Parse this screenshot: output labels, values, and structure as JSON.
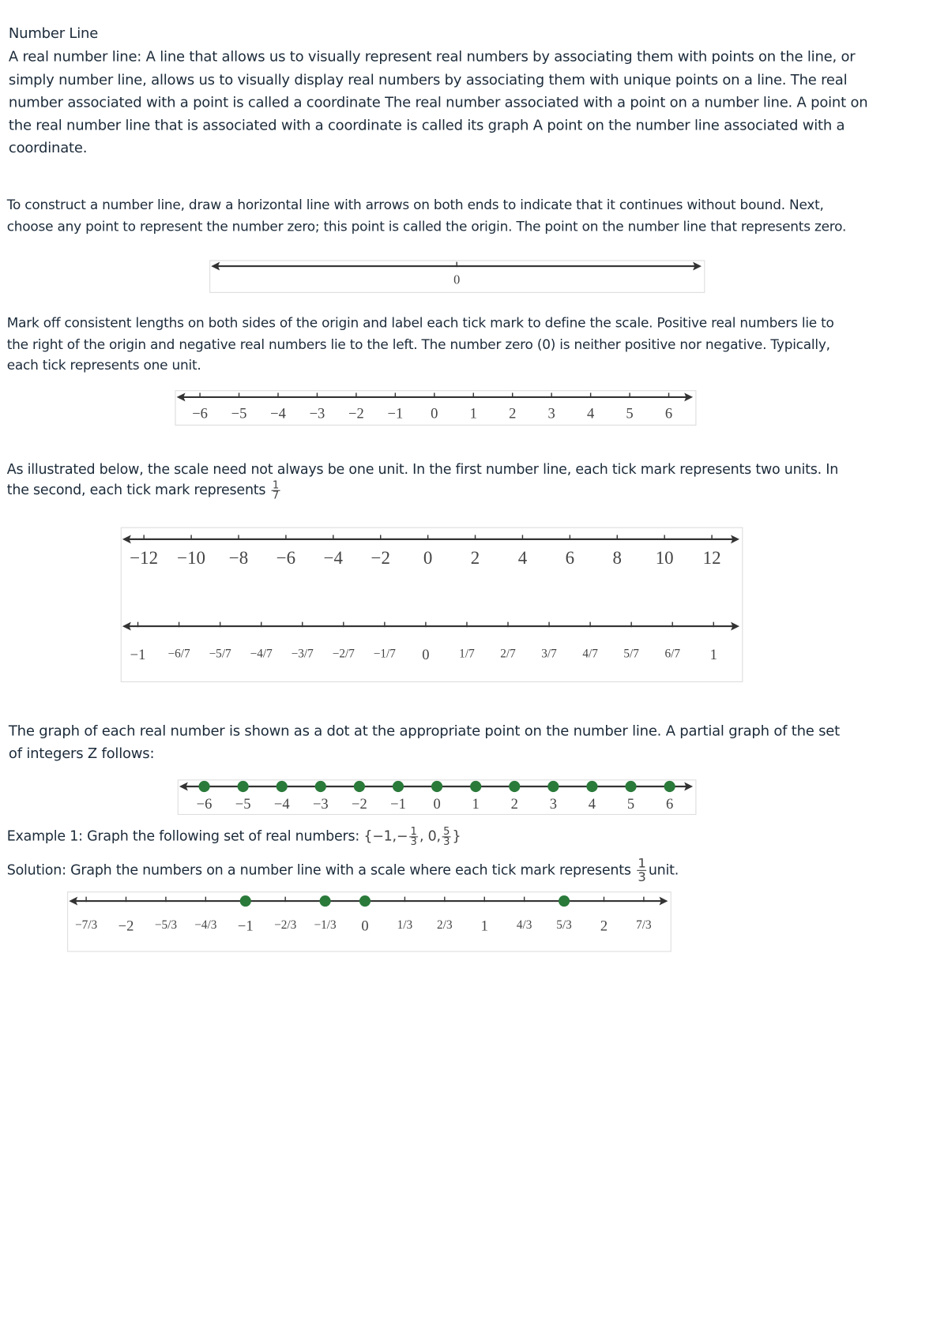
{
  "title": "Number Line",
  "intro": [
    "A real number line: A line that allows us to visually represent real numbers by associating them with points on the line, or",
    "simply number line, allows us to visually display real numbers by associating them with unique points on a line. The real",
    "number associated with a point is called a coordinate The real number associated with a point on a number line. A point on",
    "the real number line that is associated with a coordinate is called its graph A point on the number line associated with a",
    "coordinate."
  ],
  "construct": [
    "To construct a number line, draw a horizontal line with arrows on both ends to indicate that it continues without bound. Next,",
    "choose any point to represent the number zero; this point is called the origin. The point on the number line that represents zero."
  ],
  "markoff": [
    "Mark off consistent lengths on both sides of the origin and label each tick mark to define the scale. Positive real numbers lie to",
    "the right of the origin and negative real numbers lie to the left. The number zero (0) is neither positive nor negative. Typically,",
    "each tick represents one unit."
  ],
  "scale": {
    "line1": "As illustrated below, the scale need not always be one unit. In the first number line, each tick mark represents two units. In",
    "line2": "the second, each tick mark represents",
    "frac_num": "1",
    "frac_den": "7"
  },
  "graph": [
    "The graph of each real number is shown as a dot at the appropriate point on the number line. A partial graph of the set",
    "of integers Z follows:"
  ],
  "example": {
    "label": "Example 1: Graph the following set of real numbers:",
    "set_open": "{−1,−",
    "f1_num": "1",
    "f1_den": "3",
    "set_mid": ", 0,",
    "f2_num": "5",
    "f2_den": "3",
    "set_close": "}",
    "solution": "Solution: Graph the numbers on a number line with a scale where each tick mark represents",
    "sol_num": "1",
    "sol_den": "3",
    "sol_unit": "unit."
  },
  "colors": {
    "dot": "#2a7a3a",
    "line": "#333333",
    "text": "#1c2b3a"
  },
  "number_lines": [
    {
      "id": "origin",
      "ticks": [
        "0"
      ],
      "dots": []
    },
    {
      "id": "integers",
      "ticks": [
        "−6",
        "−5",
        "−4",
        "−3",
        "−2",
        "−1",
        "0",
        "1",
        "2",
        "3",
        "4",
        "5",
        "6"
      ],
      "dots": []
    },
    {
      "id": "by-two",
      "ticks": [
        "−12",
        "−10",
        "−8",
        "−6",
        "−4",
        "−2",
        "0",
        "2",
        "4",
        "6",
        "8",
        "10",
        "12"
      ],
      "dots": []
    },
    {
      "id": "sevenths",
      "ticks": [
        "−1",
        "−6/7",
        "−5/7",
        "−4/7",
        "−3/7",
        "−2/7",
        "−1/7",
        "0",
        "1/7",
        "2/7",
        "3/7",
        "4/7",
        "5/7",
        "6/7",
        "1"
      ],
      "dots": []
    },
    {
      "id": "integer-graph",
      "ticks": [
        "−6",
        "−5",
        "−4",
        "−3",
        "−2",
        "−1",
        "0",
        "1",
        "2",
        "3",
        "4",
        "5",
        "6"
      ],
      "dots": [
        "−6",
        "−5",
        "−4",
        "−3",
        "−2",
        "−1",
        "0",
        "1",
        "2",
        "3",
        "4",
        "5",
        "6"
      ]
    },
    {
      "id": "example",
      "ticks": [
        "−7/3",
        "−2",
        "−5/3",
        "−4/3",
        "−1",
        "−2/3",
        "−1/3",
        "0",
        "1/3",
        "2/3",
        "1",
        "4/3",
        "5/3",
        "2",
        "7/3"
      ],
      "dots": [
        "−1",
        "−1/3",
        "0",
        "5/3"
      ]
    }
  ]
}
